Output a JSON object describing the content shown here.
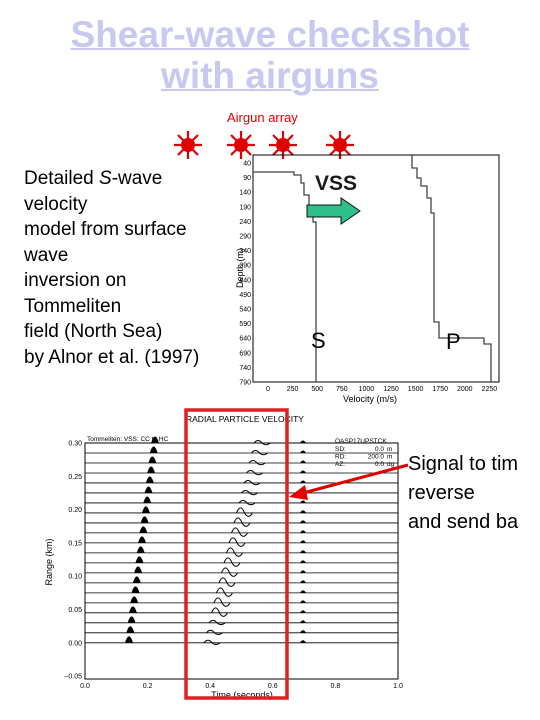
{
  "title_line1": "Shear-wave checkshot",
  "title_line2": "with airguns",
  "airgun_label": "Airgun array",
  "left_text": [
    "Detailed ",
    "S",
    "-wave",
    "velocity",
    "model from surface",
    "wave",
    "inversion on",
    "Tommeliten",
    "field (North Sea)",
    "by Alnor et al. (1997)"
  ],
  "velocity_plot": {
    "vss_label": "VSS",
    "s_label": "S",
    "p_label": "P",
    "ylabel": "Depth (m)",
    "xlabel": "Velocity (m/s)",
    "y_ticks": [
      "40",
      "90",
      "140",
      "190",
      "240",
      "290",
      "340",
      "390",
      "440",
      "490",
      "540",
      "590",
      "640",
      "690",
      "740",
      "790"
    ],
    "x_ticks": [
      "0",
      "250",
      "500",
      "750",
      "1000",
      "1250",
      "1500",
      "1750",
      "2000",
      "2250"
    ]
  },
  "seismic_plot": {
    "title": "RADIAL PARTICLE VELOCITY",
    "subtitle": "Tommeliten: VSS: CC to HC",
    "info_id": "OASP17UPSTCK",
    "info_lines": [
      [
        "SD:",
        "0.0",
        "m"
      ],
      [
        "RD:",
        "200.0",
        "m"
      ],
      [
        "AZ:",
        "0.0",
        "dg"
      ]
    ],
    "ylabel": "Range (km)",
    "xlabel": "Time (seconds)",
    "y_ticks": [
      "0.30",
      "0.25",
      "0.20",
      "0.15",
      "0.10",
      "0.05",
      "0.00",
      "−0.05"
    ],
    "x_ticks": [
      "0.0",
      "0.2",
      "0.4",
      "0.6",
      "0.8",
      "1.0"
    ]
  },
  "signal_text": [
    "Signal to tim",
    "reverse",
    "and send ba"
  ],
  "colors": {
    "title": "#c8c8f0",
    "airgun": "#e00000",
    "highlight_box": "#e02020",
    "arrow_fill": "#2ec08a",
    "pointer": "#e00000"
  }
}
